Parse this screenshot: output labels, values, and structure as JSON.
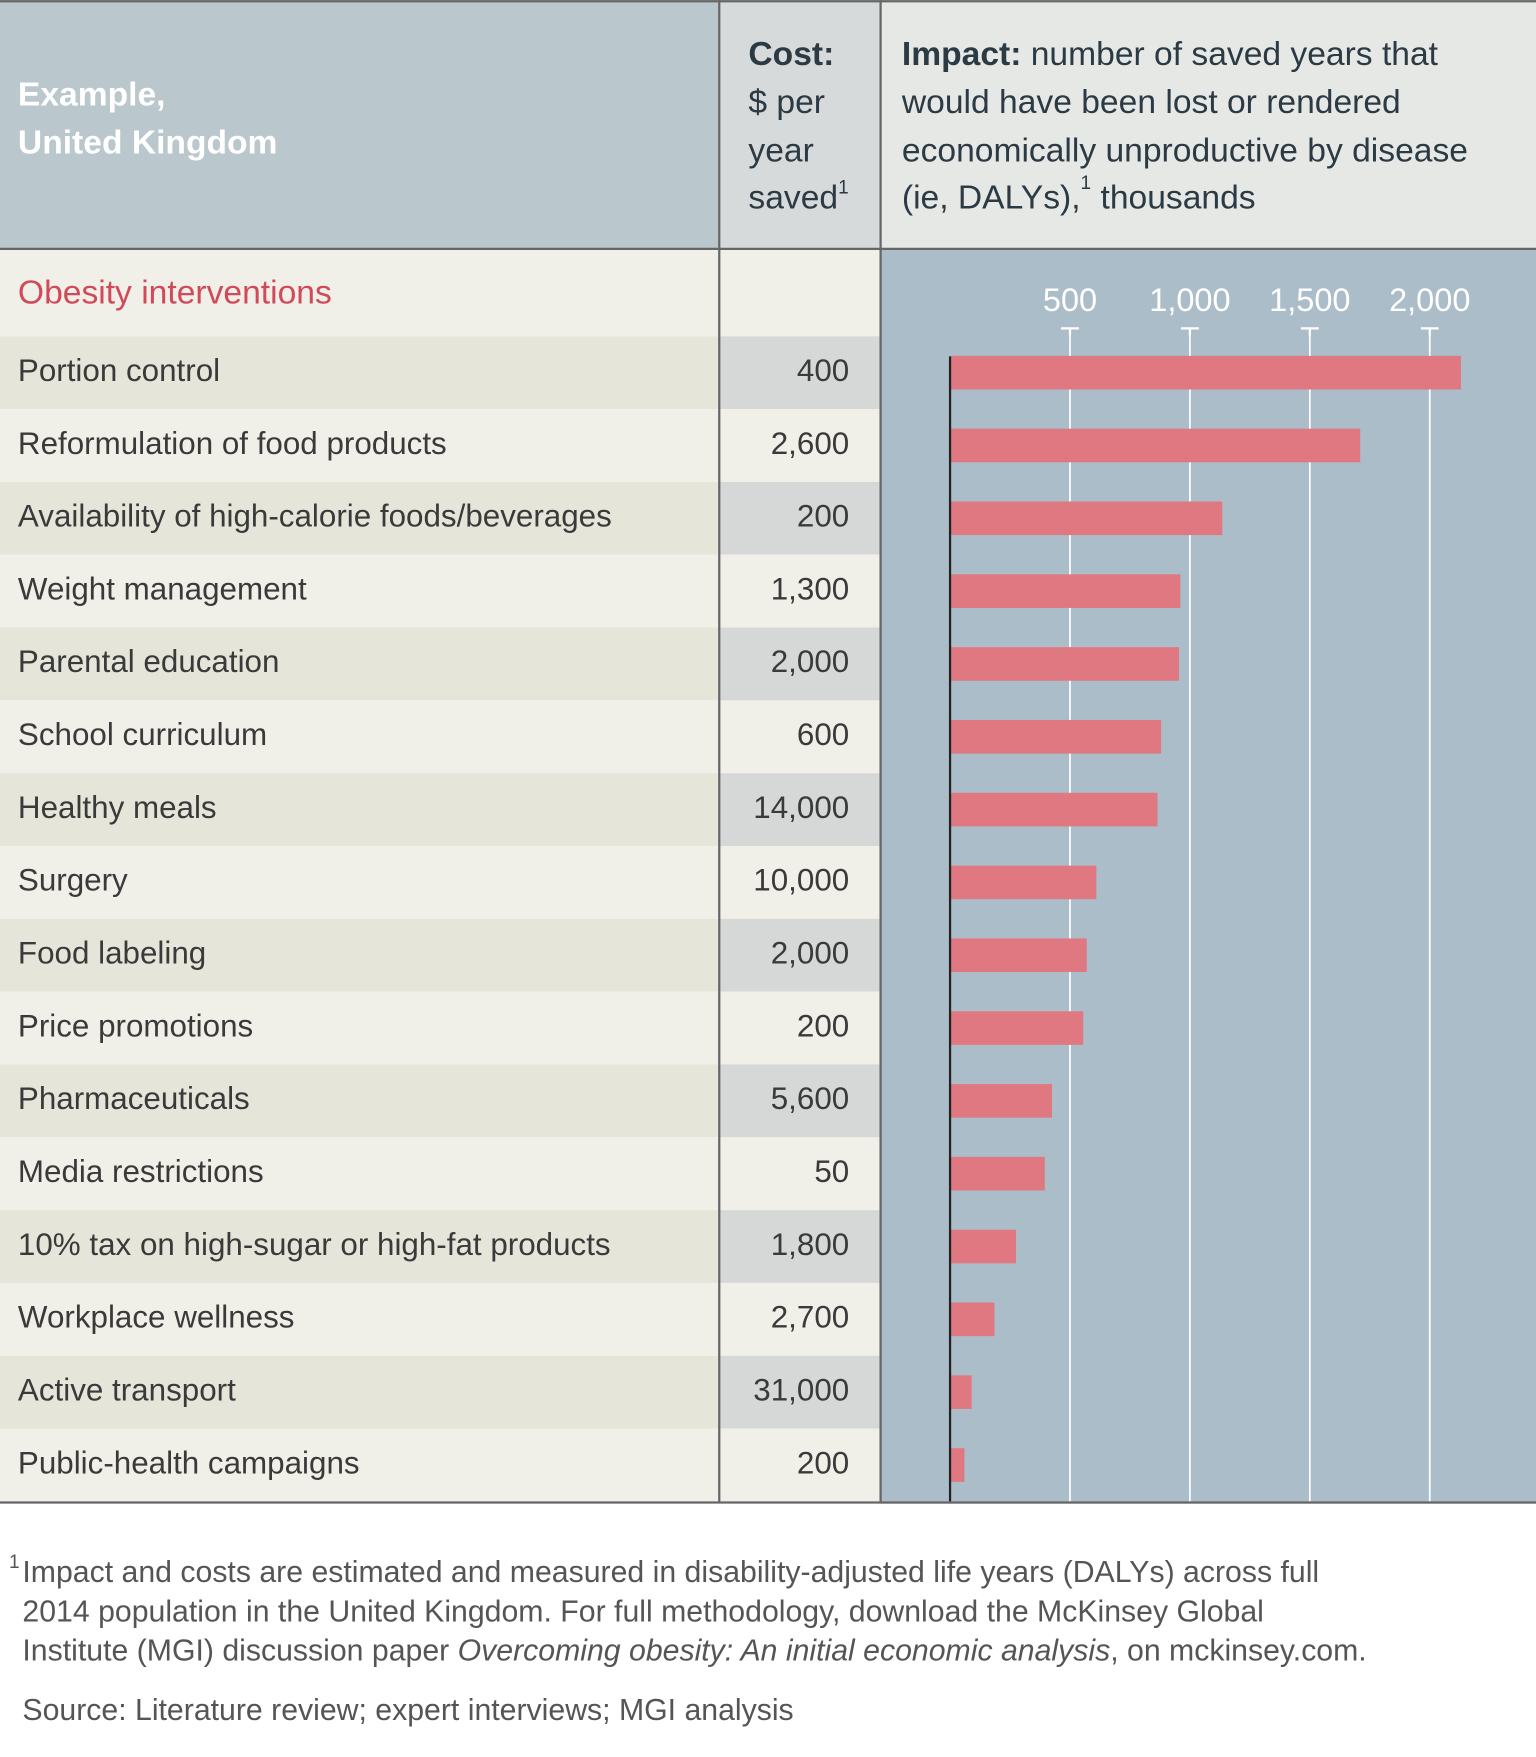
{
  "header": {
    "left": [
      "Example,",
      "United Kingdom"
    ],
    "cost": {
      "bold": "Cost:",
      "lines": [
        "$ per",
        "year",
        "saved"
      ],
      "sup": "1"
    },
    "impact": {
      "bold": "Impact:",
      "line1": " number of saved years that",
      "lines": [
        "would have been lost or rendered",
        "economically unproductive by disease"
      ],
      "line4": "(ie, DALYs),",
      "sup": "1",
      "line4_end": " thousands"
    }
  },
  "section": "Obesity interventions",
  "costs": [
    "400",
    "2,600",
    "200",
    "1,300",
    "2,000",
    "600",
    "14,000",
    "10,000",
    "2,000",
    "200",
    "5,600",
    "50",
    "1,800",
    "2,700",
    "31,000",
    "200"
  ],
  "chart_data": {
    "type": "bar",
    "orientation": "horizontal",
    "categories": [
      "Portion control",
      "Reformulation of food products",
      "Availability of high-calorie foods/beverages",
      "Weight management",
      "Parental education",
      "School curriculum",
      "Healthy meals",
      "Surgery",
      "Food labeling",
      "Price promotions",
      "Pharmaceuticals",
      "Media restrictions",
      "10% tax on high-sugar or high-fat products",
      "Workplace wellness",
      "Active transport",
      "Public-health campaigns"
    ],
    "values": [
      2130,
      1710,
      1135,
      960,
      955,
      880,
      865,
      610,
      570,
      555,
      425,
      395,
      275,
      185,
      90,
      60
    ],
    "color": "#e07882",
    "xlim": [
      0,
      2443
    ],
    "xticks": [
      500,
      {
        "value": 1000,
        "label": "1,000"
      },
      {
        "value": 1500,
        "label": "1,500"
      },
      {
        "value": 2000,
        "label": "2,000"
      }
    ],
    "grid": true
  },
  "footnote": {
    "marker": "1",
    "line1": "Impact and costs are estimated and measured in disability-adjusted life years (DALYs) across full",
    "line2": "2014 population in the United Kingdom. For full methodology, download the McKinsey Global",
    "line3_start": "Institute (MGI) discussion paper ",
    "line3_italic": "Overcoming obesity: An initial economic analysis",
    "line3_end": ", on mckinsey.com."
  },
  "source": "Source: Literature review; expert interviews; MGI analysis"
}
